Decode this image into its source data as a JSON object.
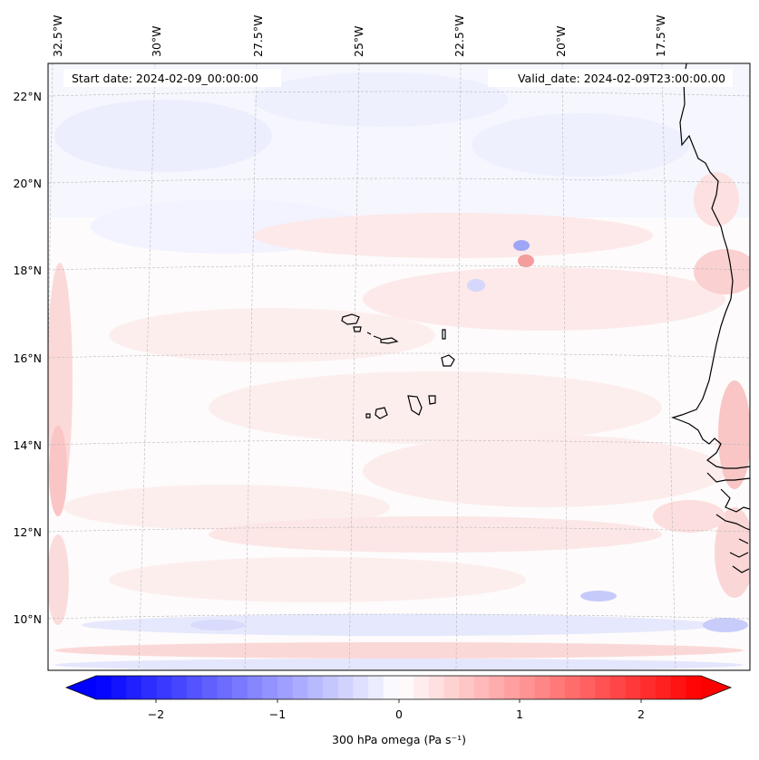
{
  "map": {
    "start_date": "Start date: 2024-02-09_00:00:00",
    "valid_date": "Valid_date: 2024-02-09T23:00:00.00",
    "longitude_labels": [
      "32.5°W",
      "30°W",
      "27.5°W",
      "25°W",
      "22.5°W",
      "20°W",
      "17.5°W"
    ],
    "latitude_labels": [
      "22°N",
      "20°N",
      "18°N",
      "16°N",
      "14°N",
      "12°N",
      "10°N"
    ],
    "field": "300 hPa omega",
    "units": "Pa s⁻¹",
    "colormap": [
      "#0000ff",
      "#ffffff",
      "#ff0000"
    ]
  },
  "colorbar": {
    "tick_labels": [
      "−2",
      "−1",
      "0",
      "1",
      "2"
    ],
    "label": "300 hPa omega (Pa s⁻¹)",
    "min": -2.6,
    "max": 2.6,
    "extend": "both"
  }
}
